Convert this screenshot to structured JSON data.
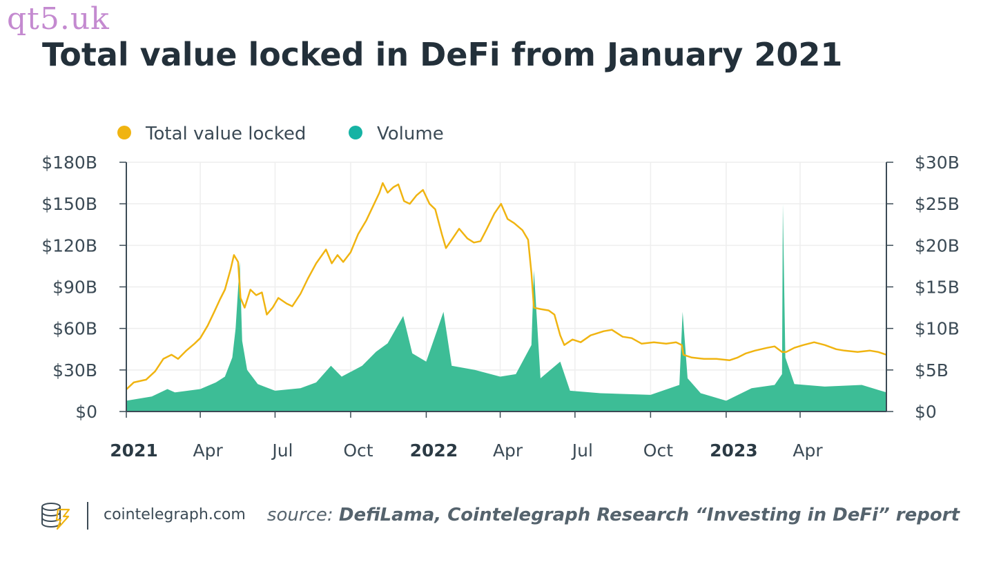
{
  "watermark": "qt5.uk",
  "footer": {
    "site": "cointelegraph.com",
    "source_label": "source:",
    "source_text": "DefiLama, Cointelegraph Research “Investing in DeFi” report"
  },
  "colors": {
    "tvl": "#f0b411",
    "volume": "#3dbd96",
    "volume_legend": "#16b3a4",
    "grid": "#eeeeee",
    "axis": "#3b4a55",
    "text": "#3b4a55",
    "title": "#23303a"
  },
  "chart_data": {
    "type": "line",
    "title": "Total value locked in DeFi from January 2021",
    "legend": {
      "placement": "top-left",
      "items": [
        "Total value locked",
        "Volume"
      ]
    },
    "x_axis": {
      "range": [
        "2021-01-01",
        "2023-07-15"
      ],
      "ticks": [
        {
          "date": "2021-01-01",
          "label": "2021",
          "bold": true
        },
        {
          "date": "2021-04-01",
          "label": "Apr",
          "bold": false
        },
        {
          "date": "2021-07-01",
          "label": "Jul",
          "bold": false
        },
        {
          "date": "2021-10-01",
          "label": "Oct",
          "bold": false
        },
        {
          "date": "2022-01-01",
          "label": "2022",
          "bold": true
        },
        {
          "date": "2022-04-01",
          "label": "Apr",
          "bold": false
        },
        {
          "date": "2022-07-01",
          "label": "Jul",
          "bold": false
        },
        {
          "date": "2022-10-01",
          "label": "Oct",
          "bold": false
        },
        {
          "date": "2023-01-01",
          "label": "2023",
          "bold": true
        },
        {
          "date": "2023-04-01",
          "label": "Apr",
          "bold": false
        }
      ]
    },
    "y_left": {
      "range": [
        0,
        180
      ],
      "unit": "B USD",
      "ticks": [
        0,
        30,
        60,
        90,
        120,
        150,
        180
      ],
      "tick_labels": [
        "$0",
        "$30B",
        "$60B",
        "$90B",
        "$120B",
        "$150B",
        "$180B"
      ]
    },
    "y_right": {
      "range": [
        0,
        30
      ],
      "unit": "B USD",
      "ticks": [
        0,
        5,
        10,
        15,
        20,
        25,
        30
      ],
      "tick_labels": [
        "$0",
        "$5B",
        "$10B",
        "$15B",
        "$20B",
        "$25B",
        "$30B"
      ]
    },
    "grid": true,
    "series": [
      {
        "name": "Total value locked",
        "type": "line",
        "axis": "left",
        "points": [
          [
            "2021-01-01",
            16
          ],
          [
            "2021-01-10",
            21
          ],
          [
            "2021-01-25",
            23
          ],
          [
            "2021-02-05",
            29
          ],
          [
            "2021-02-15",
            38
          ],
          [
            "2021-02-25",
            41
          ],
          [
            "2021-03-05",
            38
          ],
          [
            "2021-03-15",
            44
          ],
          [
            "2021-03-25",
            49
          ],
          [
            "2021-04-01",
            53
          ],
          [
            "2021-04-10",
            62
          ],
          [
            "2021-04-18",
            72
          ],
          [
            "2021-04-25",
            81
          ],
          [
            "2021-05-01",
            88
          ],
          [
            "2021-05-08",
            103
          ],
          [
            "2021-05-12",
            113
          ],
          [
            "2021-05-17",
            108
          ],
          [
            "2021-05-20",
            82
          ],
          [
            "2021-05-25",
            75
          ],
          [
            "2021-06-01",
            88
          ],
          [
            "2021-06-08",
            84
          ],
          [
            "2021-06-15",
            86
          ],
          [
            "2021-06-21",
            70
          ],
          [
            "2021-06-28",
            75
          ],
          [
            "2021-07-05",
            82
          ],
          [
            "2021-07-15",
            78
          ],
          [
            "2021-07-22",
            76
          ],
          [
            "2021-08-01",
            85
          ],
          [
            "2021-08-10",
            96
          ],
          [
            "2021-08-20",
            107
          ],
          [
            "2021-09-01",
            117
          ],
          [
            "2021-09-08",
            107
          ],
          [
            "2021-09-15",
            113
          ],
          [
            "2021-09-22",
            108
          ],
          [
            "2021-10-01",
            115
          ],
          [
            "2021-10-10",
            128
          ],
          [
            "2021-10-20",
            138
          ],
          [
            "2021-10-28",
            148
          ],
          [
            "2021-11-05",
            158
          ],
          [
            "2021-11-09",
            165
          ],
          [
            "2021-11-15",
            158
          ],
          [
            "2021-11-22",
            162
          ],
          [
            "2021-11-28",
            164
          ],
          [
            "2021-12-05",
            152
          ],
          [
            "2021-12-12",
            150
          ],
          [
            "2021-12-20",
            156
          ],
          [
            "2021-12-28",
            160
          ],
          [
            "2022-01-05",
            150
          ],
          [
            "2022-01-12",
            146
          ],
          [
            "2022-01-20",
            128
          ],
          [
            "2022-01-25",
            118
          ],
          [
            "2022-02-01",
            124
          ],
          [
            "2022-02-10",
            132
          ],
          [
            "2022-02-20",
            125
          ],
          [
            "2022-02-28",
            122
          ],
          [
            "2022-03-08",
            123
          ],
          [
            "2022-03-15",
            131
          ],
          [
            "2022-03-25",
            143
          ],
          [
            "2022-04-02",
            150
          ],
          [
            "2022-04-10",
            139
          ],
          [
            "2022-04-18",
            136
          ],
          [
            "2022-04-28",
            131
          ],
          [
            "2022-05-05",
            124
          ],
          [
            "2022-05-09",
            100
          ],
          [
            "2022-05-12",
            75
          ],
          [
            "2022-05-20",
            74
          ],
          [
            "2022-05-30",
            73
          ],
          [
            "2022-06-06",
            70
          ],
          [
            "2022-06-13",
            55
          ],
          [
            "2022-06-18",
            48
          ],
          [
            "2022-06-28",
            52
          ],
          [
            "2022-07-08",
            50
          ],
          [
            "2022-07-20",
            55
          ],
          [
            "2022-08-05",
            58
          ],
          [
            "2022-08-15",
            59
          ],
          [
            "2022-08-28",
            54
          ],
          [
            "2022-09-08",
            53
          ],
          [
            "2022-09-20",
            49
          ],
          [
            "2022-10-05",
            50
          ],
          [
            "2022-10-20",
            49
          ],
          [
            "2022-11-01",
            50
          ],
          [
            "2022-11-08",
            48
          ],
          [
            "2022-11-10",
            41
          ],
          [
            "2022-11-20",
            39
          ],
          [
            "2022-12-05",
            38
          ],
          [
            "2022-12-20",
            38
          ],
          [
            "2023-01-05",
            37
          ],
          [
            "2023-01-15",
            39
          ],
          [
            "2023-01-25",
            42
          ],
          [
            "2023-02-05",
            44
          ],
          [
            "2023-02-20",
            46
          ],
          [
            "2023-03-01",
            47
          ],
          [
            "2023-03-10",
            43
          ],
          [
            "2023-03-15",
            43
          ],
          [
            "2023-03-25",
            46
          ],
          [
            "2023-04-05",
            48
          ],
          [
            "2023-04-18",
            50
          ],
          [
            "2023-05-01",
            48
          ],
          [
            "2023-05-15",
            45
          ],
          [
            "2023-05-25",
            44
          ],
          [
            "2023-06-10",
            43
          ],
          [
            "2023-06-25",
            44
          ],
          [
            "2023-07-05",
            43
          ],
          [
            "2023-07-15",
            41
          ]
        ]
      },
      {
        "name": "Volume",
        "type": "area",
        "axis": "right",
        "points": [
          [
            "2021-01-01",
            1.3
          ],
          [
            "2021-02-01",
            1.8
          ],
          [
            "2021-02-20",
            2.7
          ],
          [
            "2021-03-01",
            2.3
          ],
          [
            "2021-04-01",
            2.7
          ],
          [
            "2021-04-20",
            3.5
          ],
          [
            "2021-05-01",
            4.2
          ],
          [
            "2021-05-10",
            6.5
          ],
          [
            "2021-05-14",
            10.0
          ],
          [
            "2021-05-19",
            18.0
          ],
          [
            "2021-05-22",
            8.5
          ],
          [
            "2021-05-28",
            5.0
          ],
          [
            "2021-06-10",
            3.3
          ],
          [
            "2021-07-01",
            2.5
          ],
          [
            "2021-08-01",
            2.8
          ],
          [
            "2021-08-20",
            3.5
          ],
          [
            "2021-09-07",
            5.5
          ],
          [
            "2021-09-20",
            4.2
          ],
          [
            "2021-10-15",
            5.5
          ],
          [
            "2021-11-01",
            7.2
          ],
          [
            "2021-11-15",
            8.2
          ],
          [
            "2021-12-04",
            11.5
          ],
          [
            "2021-12-15",
            7.0
          ],
          [
            "2022-01-01",
            6.0
          ],
          [
            "2022-01-22",
            12.0
          ],
          [
            "2022-02-01",
            5.5
          ],
          [
            "2022-03-01",
            5.0
          ],
          [
            "2022-04-01",
            4.2
          ],
          [
            "2022-04-20",
            4.5
          ],
          [
            "2022-05-09",
            8.0
          ],
          [
            "2022-05-12",
            17.0
          ],
          [
            "2022-05-20",
            4.0
          ],
          [
            "2022-06-13",
            6.0
          ],
          [
            "2022-06-25",
            2.5
          ],
          [
            "2022-08-01",
            2.2
          ],
          [
            "2022-10-01",
            2.0
          ],
          [
            "2022-11-05",
            3.2
          ],
          [
            "2022-11-09",
            12.0
          ],
          [
            "2022-11-15",
            4.0
          ],
          [
            "2022-12-01",
            2.2
          ],
          [
            "2023-01-01",
            1.3
          ],
          [
            "2023-02-01",
            2.8
          ],
          [
            "2023-03-01",
            3.2
          ],
          [
            "2023-03-10",
            4.5
          ],
          [
            "2023-03-11",
            25.0
          ],
          [
            "2023-03-14",
            6.5
          ],
          [
            "2023-03-25",
            3.3
          ],
          [
            "2023-05-01",
            3.0
          ],
          [
            "2023-06-15",
            3.2
          ],
          [
            "2023-07-15",
            2.3
          ]
        ]
      }
    ]
  }
}
